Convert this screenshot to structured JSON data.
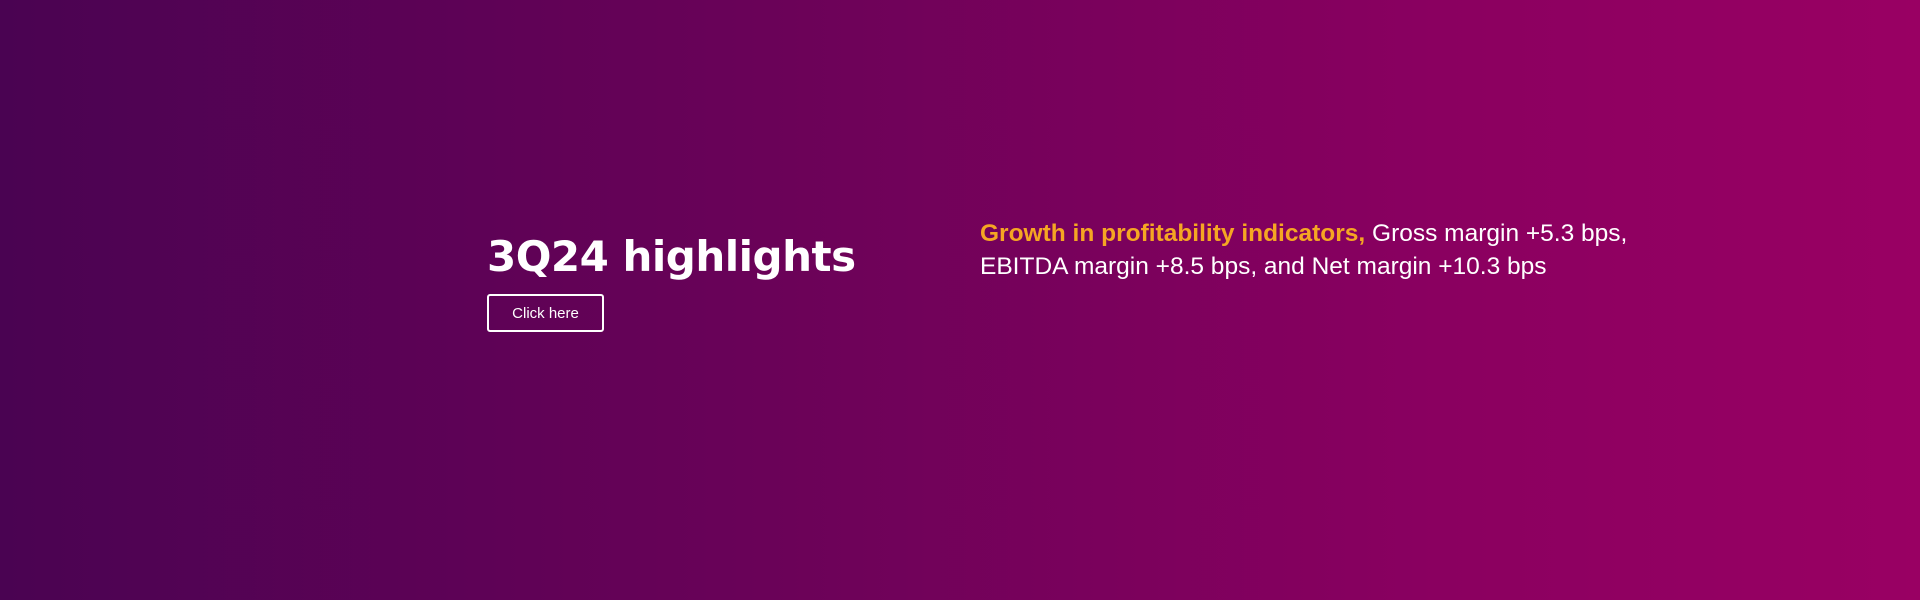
{
  "banner": {
    "background_colors": [
      "#4a0352",
      "#990063"
    ],
    "title": "3Q24 highlights",
    "cta_label": "Click here",
    "highlight_lead": "Growth in profitability indicators,",
    "highlight_body": "Gross margin +5.3 bps, EBITDA margin +8.5 bps, and Net margin +10.3 bps",
    "accent_color": "#f5a623"
  }
}
